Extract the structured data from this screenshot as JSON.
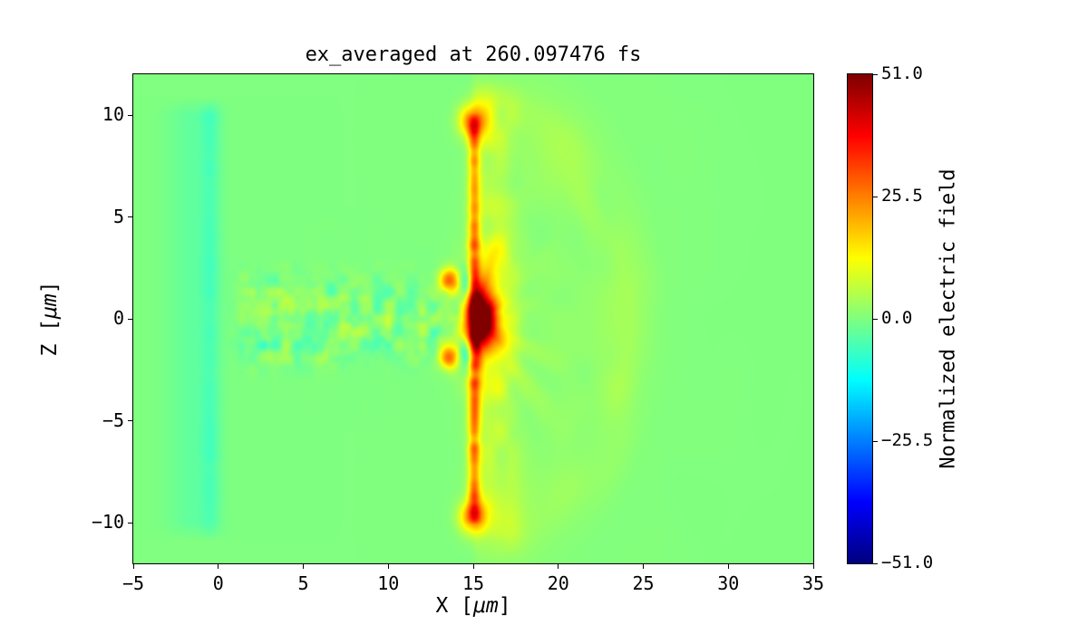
{
  "chart_data": {
    "type": "heatmap",
    "title": "ex_averaged at 260.097476 fs",
    "xlabel": {
      "pre": "X [",
      "unit": "μm",
      "post": "]"
    },
    "ylabel": {
      "pre": "Z [",
      "unit": "μm",
      "post": "]"
    },
    "x_range": [
      -5,
      35
    ],
    "z_range": [
      -12,
      12
    ],
    "x_ticks": {
      "values": [
        -5,
        0,
        5,
        10,
        15,
        20,
        25,
        30,
        35
      ],
      "labels": [
        "−5",
        "0",
        "5",
        "10",
        "15",
        "20",
        "25",
        "30",
        "35"
      ]
    },
    "y_ticks": {
      "values": [
        -10,
        -5,
        0,
        5,
        10
      ],
      "labels": [
        "−10",
        "−5",
        "0",
        "5",
        "10"
      ]
    },
    "colorbar": {
      "label": "Normalized electric field",
      "vmin": -51,
      "vmax": 51,
      "colormap": "jet",
      "ticks": {
        "values": [
          51,
          25.5,
          0,
          -25.5,
          -51
        ],
        "labels": [
          "51.0",
          "25.5",
          "0.0",
          "−25.5",
          "−51.0"
        ]
      }
    },
    "background_value": 0,
    "features": {
      "left_band": {
        "z_extent": 10.9,
        "amplitude_broad": -3,
        "amplitude_core": -4.5
      },
      "wake": {
        "x_min": 0.4,
        "x_max": 14.9,
        "z_half_width": 2.3,
        "amplitude": 10
      },
      "vortices": [
        {
          "x": 13.6,
          "z": 1.9,
          "amplitude": 26,
          "sigma": 0.4
        },
        {
          "x": 13.6,
          "z": -1.9,
          "amplitude": 26,
          "sigma": 0.4
        }
      ],
      "pulse_core": {
        "x": 15.45,
        "z": 0,
        "amplitude": 46,
        "sigma_x": 0.8,
        "sigma_z": 1.35,
        "halo_amplitude": 16
      },
      "swirl_lobes": {
        "x": 14.6,
        "z": 1.7,
        "amplitude": -18,
        "sigma_x": 0.45,
        "sigma_z": 0.8
      },
      "filament": {
        "x": 15.05,
        "amplitude": 20,
        "noise_amplitude": 6,
        "sigma_x": 0.35,
        "z_extent": 10.1
      },
      "tip_spots": {
        "x": 15.0,
        "z": 9.7,
        "amplitude": 26,
        "sigma": 0.55
      },
      "wing": {
        "x": 16.2,
        "sigma_x": 1.4,
        "amplitude": 8,
        "z_extent": 11.8
      },
      "halo": {
        "origin_x": 15,
        "rx": 10.5,
        "rz": 12.5,
        "amplitude": 10,
        "arc_amplitude": 3.5,
        "arc_radius": 0.85
      }
    }
  }
}
